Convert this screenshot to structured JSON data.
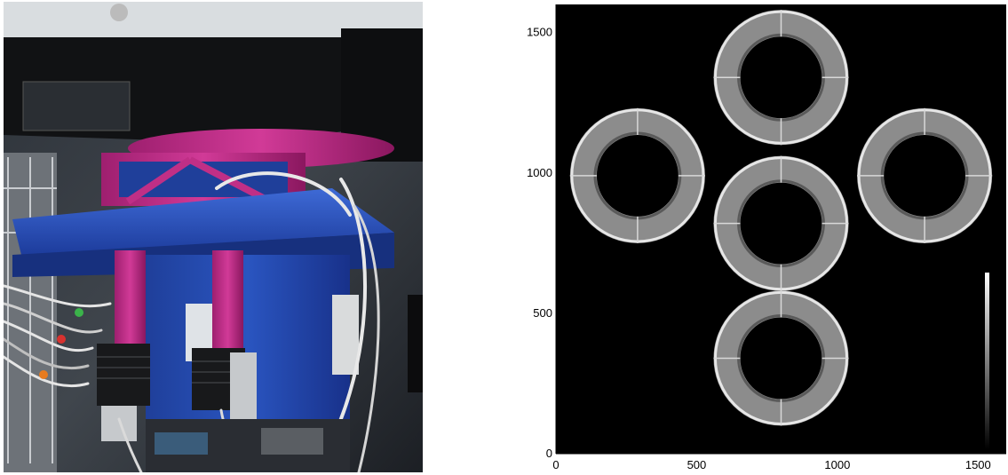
{
  "figure": {
    "photo": {
      "subject": "instrument-photo"
    },
    "plot": {
      "x_ticks": [
        "0",
        "500",
        "1000",
        "1500"
      ],
      "y_ticks": [
        "0",
        "500",
        "1000",
        "1500"
      ],
      "x_range": [
        0,
        1600
      ],
      "y_range": [
        0,
        1600
      ],
      "colorbar": "grayscale",
      "rings": [
        {
          "name": "top",
          "cx": 800,
          "cy": 1340
        },
        {
          "name": "left",
          "cx": 290,
          "cy": 990
        },
        {
          "name": "center",
          "cx": 800,
          "cy": 820
        },
        {
          "name": "right",
          "cx": 1310,
          "cy": 990
        },
        {
          "name": "bottom",
          "cx": 800,
          "cy": 340
        }
      ],
      "ring_outer_radius": 240,
      "ring_inner_radius": 145
    }
  }
}
